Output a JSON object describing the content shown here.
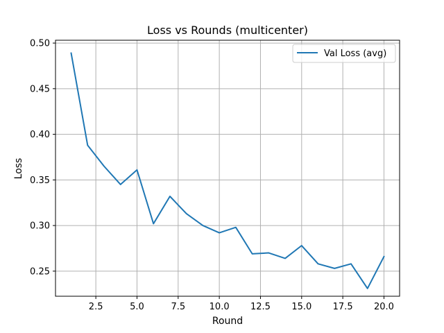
{
  "chart_data": {
    "type": "line",
    "title": "Loss vs Rounds (multicenter)",
    "xlabel": "Round",
    "ylabel": "Loss",
    "xlim": [
      0.05,
      20.95
    ],
    "ylim": [
      0.2225,
      0.5031
    ],
    "xticks": [
      2.5,
      5.0,
      7.5,
      10.0,
      12.5,
      15.0,
      17.5,
      20.0
    ],
    "xtick_labels": [
      "2.5",
      "5.0",
      "7.5",
      "10.0",
      "12.5",
      "15.0",
      "17.5",
      "20.0"
    ],
    "yticks": [
      0.25,
      0.3,
      0.35,
      0.4,
      0.45,
      0.5
    ],
    "ytick_labels": [
      "0.25",
      "0.30",
      "0.35",
      "0.40",
      "0.45",
      "0.50"
    ],
    "grid": true,
    "legend_position": "top-right",
    "series": [
      {
        "name": "Val Loss (avg)",
        "color": "#1f77b4",
        "x": [
          1,
          2,
          3,
          4,
          5,
          6,
          7,
          8,
          9,
          10,
          11,
          12,
          13,
          14,
          15,
          16,
          17,
          18,
          19,
          20
        ],
        "y": [
          0.489,
          0.388,
          0.365,
          0.345,
          0.361,
          0.302,
          0.332,
          0.313,
          0.3,
          0.292,
          0.298,
          0.269,
          0.27,
          0.264,
          0.278,
          0.258,
          0.253,
          0.258,
          0.231,
          0.266
        ]
      }
    ]
  }
}
